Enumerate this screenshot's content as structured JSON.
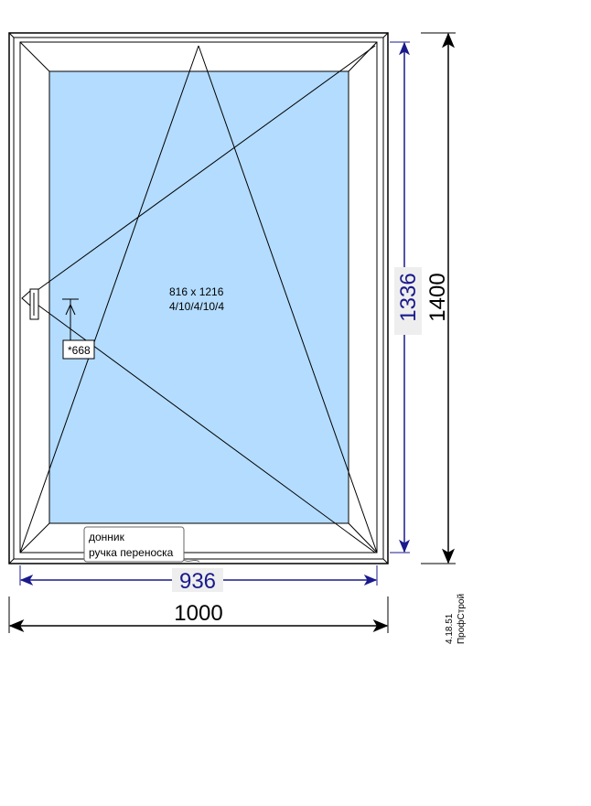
{
  "glass": {
    "size_label": "816 x 1216",
    "formula": "4/10/4/10/4",
    "color": "#b3dcff"
  },
  "handle": {
    "height_label": "*668"
  },
  "notes": {
    "line1": "донник",
    "line2": "ручка переноска"
  },
  "dimensions": {
    "sash_width": "936",
    "frame_width": "1000",
    "sash_height": "1336",
    "frame_height": "1400",
    "sash_color": "#1a1a8c"
  },
  "side_caption": {
    "code": "4.18.51",
    "brand": "ПрофСтрой"
  }
}
